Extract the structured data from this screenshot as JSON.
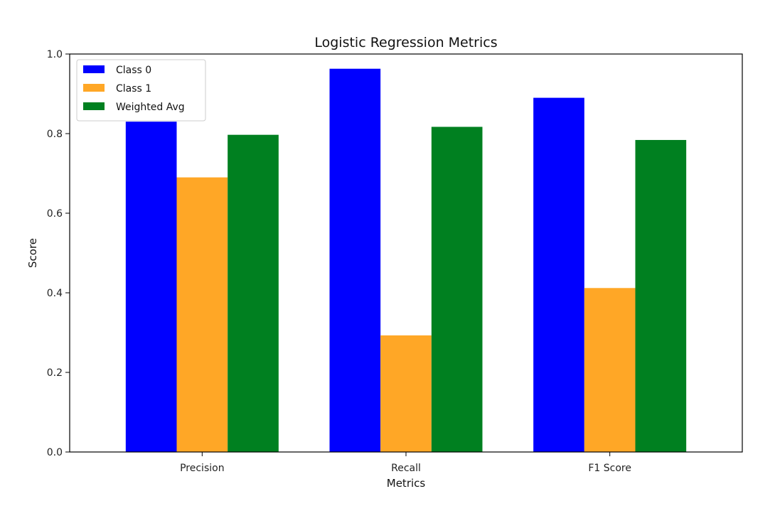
{
  "chart_data": {
    "type": "bar",
    "title": "Logistic Regression Metrics",
    "xlabel": "Metrics",
    "ylabel": "Score",
    "categories": [
      "Precision",
      "Recall",
      "F1 Score"
    ],
    "ylim": [
      0,
      1.0
    ],
    "yticks": [
      "0.0",
      "0.2",
      "0.4",
      "0.6",
      "0.8",
      "1.0"
    ],
    "grid": false,
    "legend_position": "top-left",
    "series": [
      {
        "name": "Class 0",
        "color": "#0000ff",
        "values": [
          0.83,
          0.963,
          0.89
        ]
      },
      {
        "name": "Class 1",
        "color": "#ffa726",
        "values": [
          0.69,
          0.293,
          0.412
        ]
      },
      {
        "name": "Weighted Avg",
        "color": "#008020",
        "values": [
          0.797,
          0.817,
          0.784
        ]
      }
    ]
  }
}
